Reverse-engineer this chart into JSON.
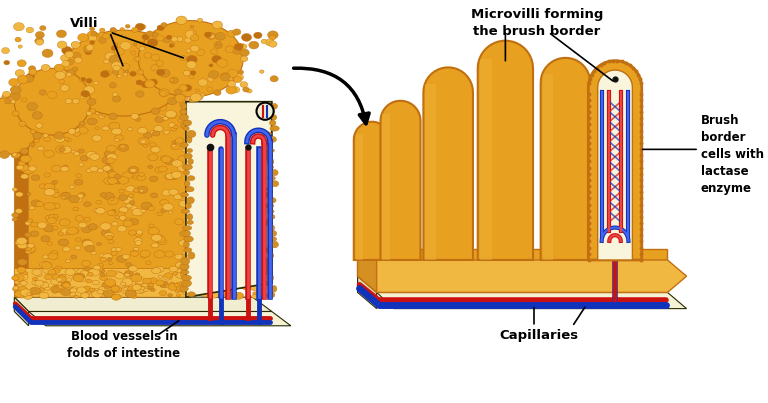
{
  "bg_color": "#ffffff",
  "labels": {
    "villi": "Villi",
    "microvilli": "Microvilli forming\nthe brush border",
    "blood_vessels": "Blood vessels in\nfolds of intestine",
    "brush_border": "Brush\nborder\ncells with\nlactase\nenzyme",
    "capillaries": "Capillaries"
  },
  "colors": {
    "orange": "#E8A020",
    "orange_dark": "#C07010",
    "orange_light": "#F0B840",
    "orange_mid": "#D49020",
    "cream": "#F8F5DC",
    "cream_dark": "#E8E5B8",
    "cream_mid": "#F0EDD0",
    "red": "#CC1111",
    "red_light": "#EE4444",
    "blue": "#1133BB",
    "blue_light": "#4466EE",
    "base_cream": "#F5F2D5",
    "base_side": "#E0DDB8",
    "outline": "#2A2A00",
    "black": "#111111"
  }
}
